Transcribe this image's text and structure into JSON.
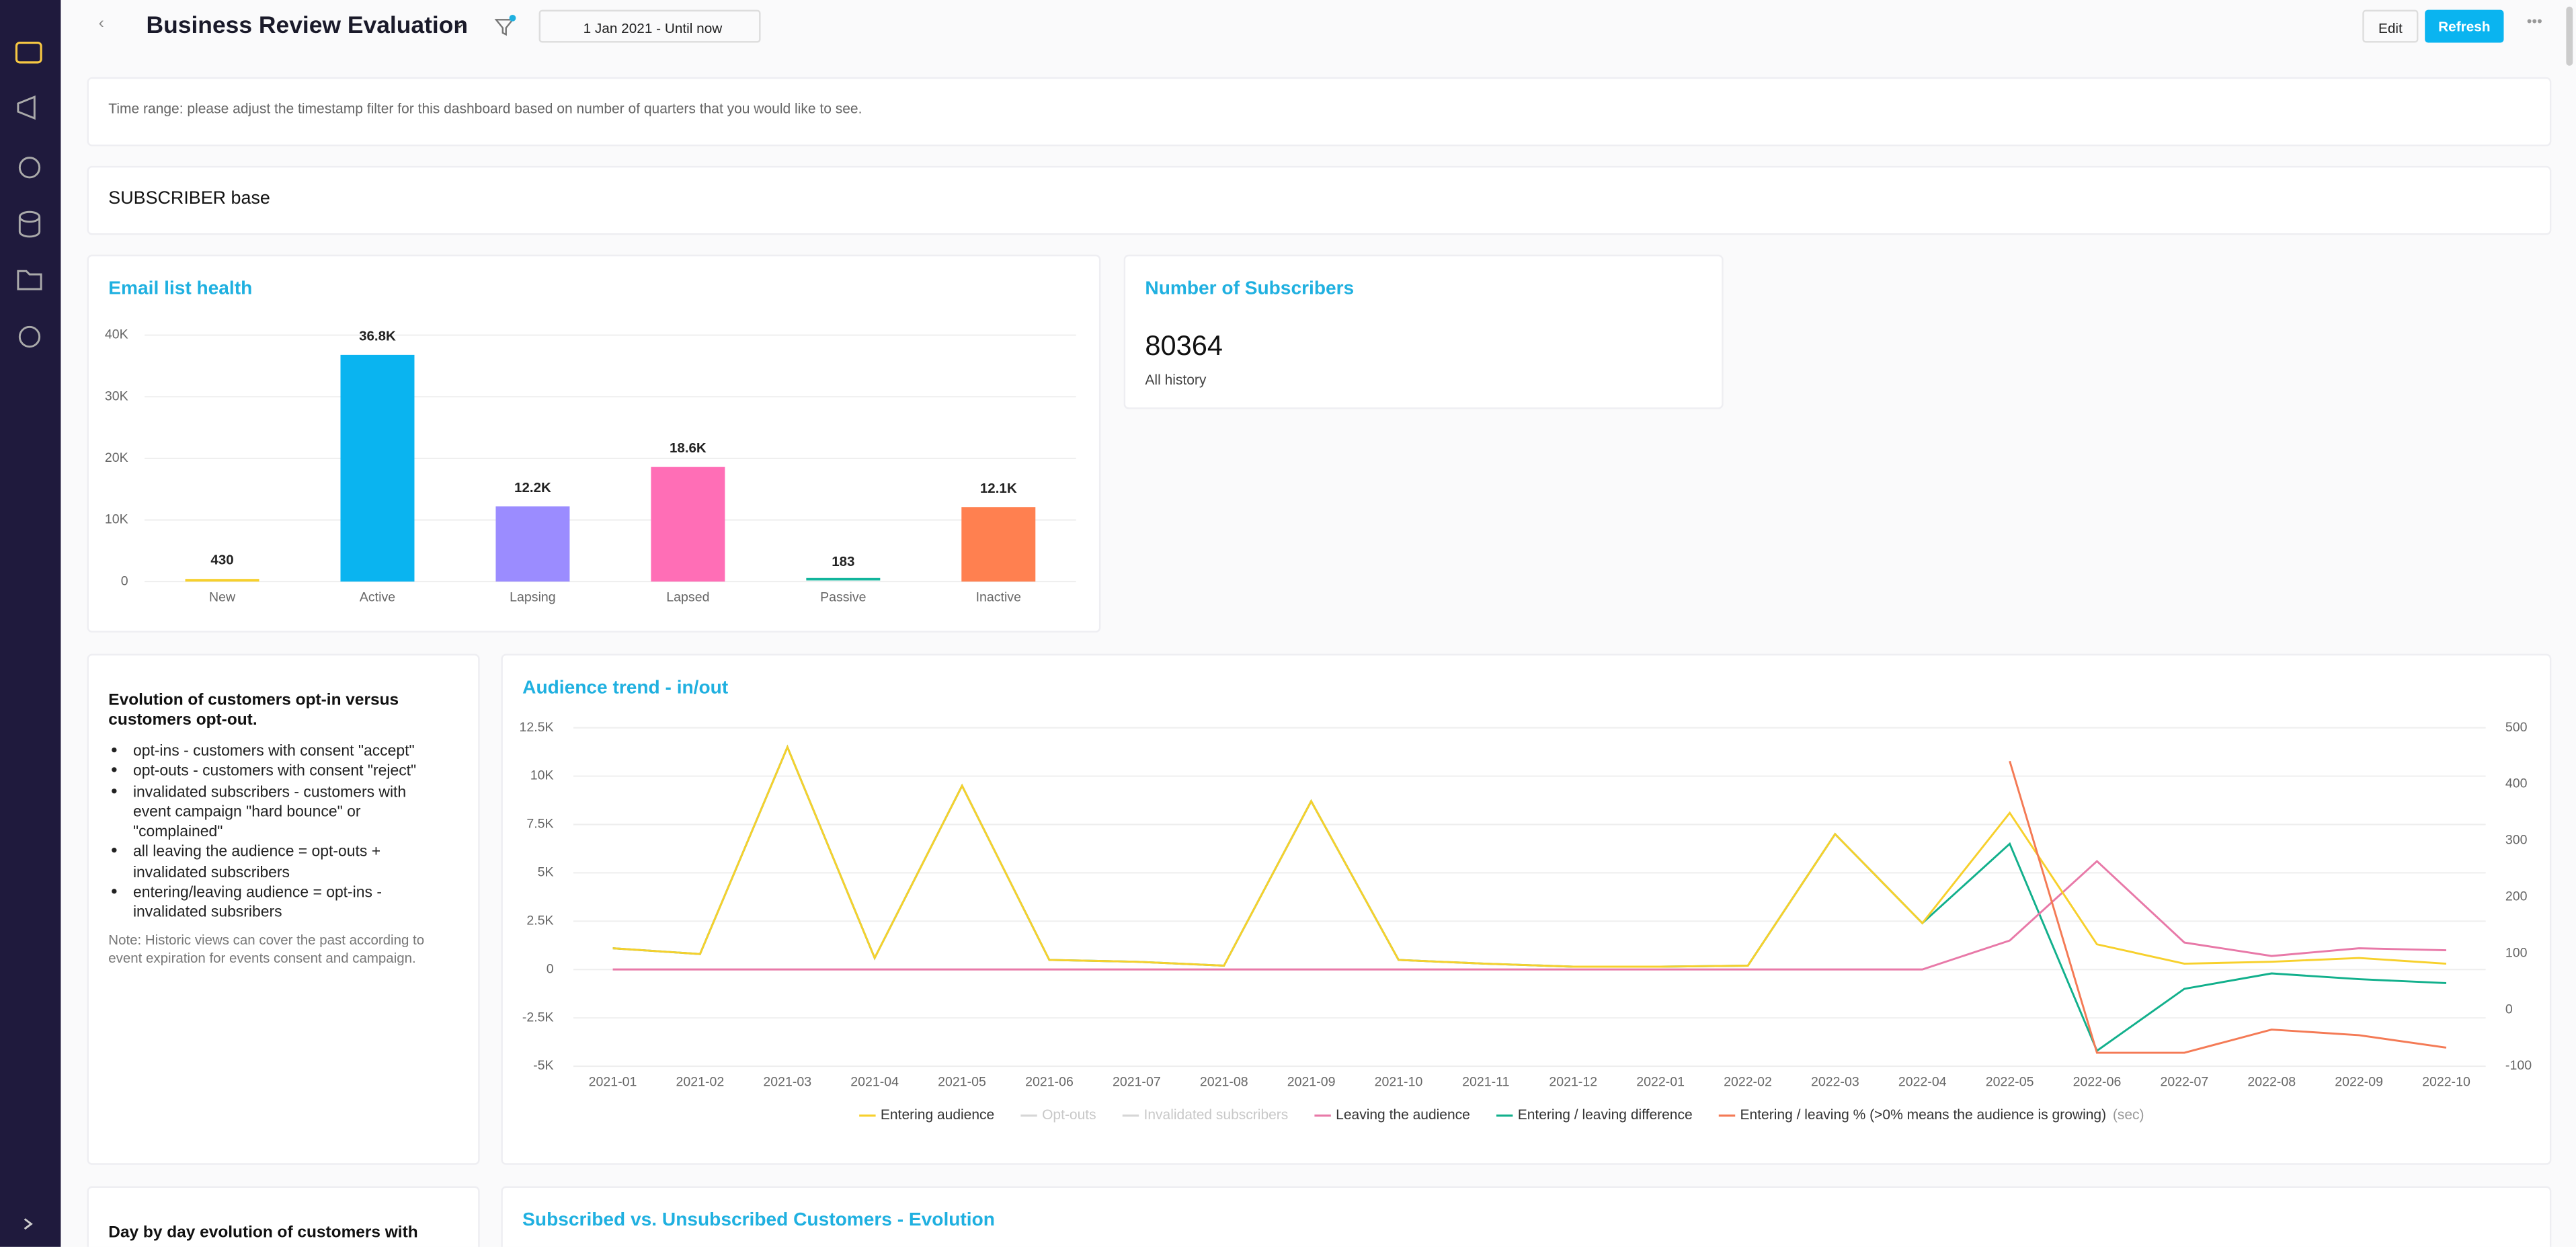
{
  "header": {
    "title": "Business Review Evaluation",
    "date_range": "1 Jan 2021 - Until now",
    "edit": "Edit",
    "refresh": "Refresh"
  },
  "note": "Time range: please adjust the timestamp filter for this dashboard based on number of quarters that you would like to see.",
  "section": "SUBSCRIBER base",
  "email_health": {
    "type": "bar",
    "title": "Email list health",
    "categories": [
      "New",
      "Active",
      "Lapsing",
      "Lapsed",
      "Passive",
      "Inactive"
    ],
    "values": [
      430,
      36800,
      12200,
      18600,
      183,
      12100
    ],
    "value_labels": [
      "430",
      "36.8K",
      "12.2K",
      "18.6K",
      "183",
      "12.1K"
    ],
    "colors": [
      "#f7d02c",
      "#0ab4f0",
      "#9b8cff",
      "#ff6eb6",
      "#12b59c",
      "#ff8050"
    ],
    "ylim": [
      0,
      40000
    ],
    "yticks": [
      0,
      {
        "value": 10000,
        "label": "10K"
      },
      {
        "value": 20000,
        "label": "20K"
      },
      {
        "value": 30000,
        "label": "30K"
      },
      {
        "value": 40000,
        "label": "40K"
      }
    ],
    "grid": true
  },
  "subscribers": {
    "title": "Number of Subscribers",
    "value": 80364,
    "caption": "All history"
  },
  "opt_info": {
    "title": "Evolution of customers opt-in versus customers opt-out.",
    "bullets": [
      "opt-ins - customers with consent \"accept\"",
      "opt-outs - customers with consent \"reject\"",
      "invalidated subscribers - customers with event campaign \"hard bounce\" or \"complained\"",
      "all leaving the audience = opt-outs + invalidated subscribers",
      "entering/leaving audience = opt-ins - invalidated subsribers"
    ],
    "note": "Note: Historic views can cover the past according to event expiration for events consent and campaign."
  },
  "audience_trend": {
    "type": "line",
    "title": "Audience trend - in/out",
    "x": [
      "2021-01",
      "2021-02",
      "2021-03",
      "2021-04",
      "2021-05",
      "2021-06",
      "2021-07",
      "2021-08",
      "2021-09",
      "2021-10",
      "2021-11",
      "2021-12",
      "2022-01",
      "2022-02",
      "2022-03",
      "2022-04",
      "2022-05",
      "2022-06",
      "2022-07",
      "2022-08",
      "2022-09",
      "2022-10"
    ],
    "series": [
      {
        "name": "Entering audience",
        "color": "#f7d02c",
        "values": [
          1100,
          800,
          11500,
          600,
          9500,
          500,
          400,
          200,
          8700,
          500,
          300,
          150,
          150,
          200,
          7000,
          2400,
          8100,
          1300,
          300,
          400,
          600,
          300
        ]
      },
      {
        "name": "Opt-outs",
        "color": "#d6d6d6",
        "hidden": true
      },
      {
        "name": "Invalidated subscribers",
        "color": "#d6d6d6",
        "hidden": true
      },
      {
        "name": "Leaving the audience",
        "color": "#e879a8",
        "values": [
          0,
          0,
          0,
          0,
          0,
          0,
          0,
          0,
          0,
          0,
          0,
          0,
          0,
          0,
          0,
          0,
          1500,
          5600,
          1400,
          700,
          1100,
          1000
        ]
      },
      {
        "name": "Entering / leaving difference",
        "color": "#12b08c",
        "values": [
          1100,
          800,
          11500,
          600,
          9500,
          500,
          400,
          200,
          8700,
          500,
          300,
          150,
          150,
          200,
          7000,
          2400,
          6500,
          -4200,
          -1000,
          -200,
          -500,
          -700
        ]
      },
      {
        "name": "Entering / leaving % (>0% means the audience is growing)",
        "suffix": "(sec)",
        "color": "#f47a55",
        "axis": "y2",
        "values": [
          null,
          null,
          null,
          null,
          null,
          null,
          null,
          null,
          null,
          null,
          null,
          null,
          null,
          null,
          null,
          null,
          441,
          -76,
          -76,
          -35,
          -45,
          -67
        ]
      }
    ],
    "ylim": [
      -5000,
      12500
    ],
    "yticks": [
      {
        "value": -5000,
        "label": "-5K"
      },
      {
        "value": -2500,
        "label": "-2.5K"
      },
      0,
      {
        "value": 2500,
        "label": "2.5K"
      },
      {
        "value": 5000,
        "label": "5K"
      },
      {
        "value": 7500,
        "label": "7.5K"
      },
      {
        "value": 10000,
        "label": "10K"
      },
      {
        "value": 12500,
        "label": "12.5K"
      }
    ],
    "y2lim": [
      -100,
      500
    ],
    "y2ticks": [
      -100,
      0,
      100,
      200,
      300,
      400,
      500
    ],
    "grid": true
  },
  "bottom": {
    "left_title": "Day by day evolution of customers with",
    "right_title": "Subscribed vs. Unsubscribed Customers - Evolution"
  }
}
